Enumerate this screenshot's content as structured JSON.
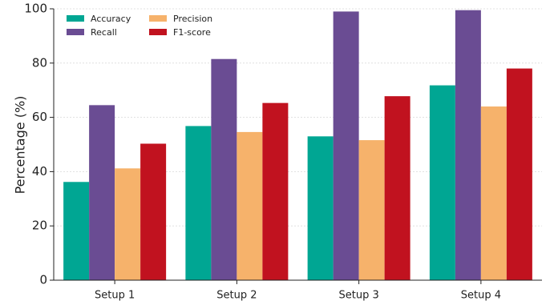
{
  "chart_data": {
    "type": "bar",
    "title": "",
    "xlabel": "",
    "ylabel": "Percentage (%)",
    "ylim": [
      0,
      100
    ],
    "yticks": [
      0,
      20,
      40,
      60,
      80,
      100
    ],
    "grid": true,
    "legend_position": "top-left",
    "categories": [
      "Setup 1",
      "Setup 2",
      "Setup 3",
      "Setup 4"
    ],
    "series": [
      {
        "name": "Accuracy",
        "color": "#00a693",
        "values": [
          36.2,
          56.8,
          53.0,
          71.8
        ]
      },
      {
        "name": "Recall",
        "color": "#6a4c93",
        "values": [
          64.5,
          81.5,
          99.0,
          99.5
        ]
      },
      {
        "name": "Precision",
        "color": "#f6b26b",
        "values": [
          41.2,
          54.6,
          51.6,
          64.0
        ]
      },
      {
        "name": "F1-score",
        "color": "#c1121f",
        "values": [
          50.3,
          65.3,
          67.8,
          78.0
        ]
      }
    ]
  }
}
